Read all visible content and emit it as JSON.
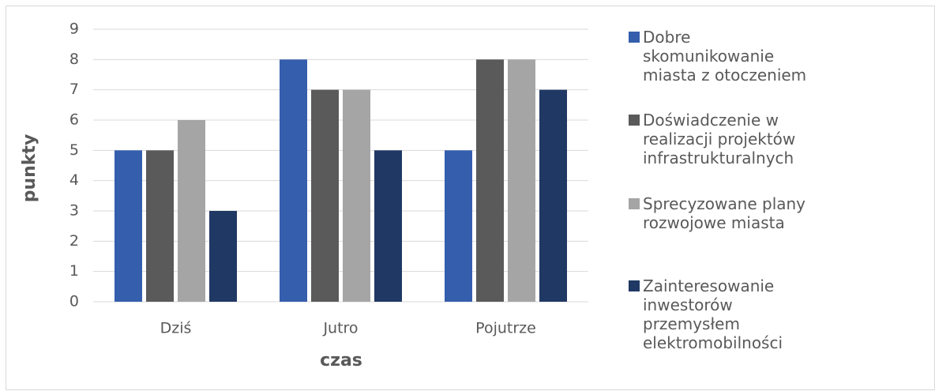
{
  "chart_data": {
    "type": "bar",
    "xlabel": "czas",
    "ylabel": "punkty",
    "categories": [
      "Dziś",
      "Jutro",
      "Pojutrze"
    ],
    "series": [
      {
        "name": "Dobre skomunikowanie miasta z otoczeniem",
        "color": "#355ead",
        "values": [
          5,
          8,
          5
        ]
      },
      {
        "name": "Doświadczenie w realizacji projektów infrastrukturalnych",
        "color": "#5a5a5a",
        "values": [
          5,
          7,
          8
        ]
      },
      {
        "name": "Sprecyzowane plany rozwojowe miasta",
        "color": "#a5a5a5",
        "values": [
          6,
          7,
          8
        ]
      },
      {
        "name": "Zainteresowanie inwestorów przemysłem elektromobilności",
        "color": "#203864",
        "values": [
          3,
          5,
          7
        ]
      }
    ],
    "ylim": [
      0,
      9
    ],
    "yticks": [
      0,
      1,
      2,
      3,
      4,
      5,
      6,
      7,
      8,
      9
    ],
    "grid": true,
    "legend": "right"
  }
}
